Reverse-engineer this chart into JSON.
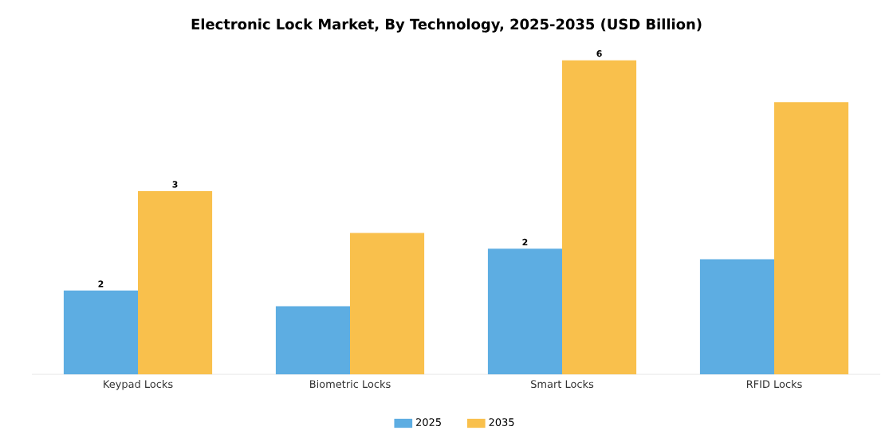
{
  "chart_data": {
    "type": "bar",
    "title": "Electronic Lock Market, By Technology, 2025-2035 (USD Billion)",
    "categories": [
      "Keypad Locks",
      "Biometric Locks",
      "Smart Locks",
      "RFID Locks"
    ],
    "series": [
      {
        "name": "2025",
        "color": "#5dade2",
        "values": [
          1.6,
          1.3,
          2.4,
          2.2
        ],
        "value_labels": [
          "2",
          null,
          "2",
          null
        ]
      },
      {
        "name": "2035",
        "color": "#f9c04c",
        "values": [
          3.5,
          2.7,
          6.0,
          5.2
        ],
        "value_labels": [
          "3",
          null,
          "6",
          null
        ]
      }
    ],
    "legend": "bottom",
    "grid": false
  }
}
